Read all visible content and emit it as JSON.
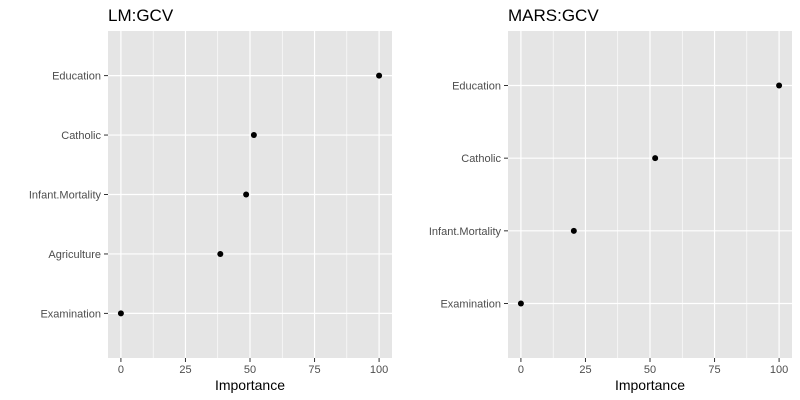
{
  "chart_data": [
    {
      "type": "scatter",
      "title": "LM:GCV",
      "xlabel": "Importance",
      "ylabel": "",
      "xlim": [
        -5,
        105
      ],
      "xticks": [
        0,
        25,
        50,
        75,
        100
      ],
      "grid": true,
      "categories": [
        "Education",
        "Catholic",
        "Infant.Mortality",
        "Agriculture",
        "Examination"
      ],
      "values": [
        100,
        51.5,
        48.5,
        38.5,
        0
      ]
    },
    {
      "type": "scatter",
      "title": "MARS:GCV",
      "xlabel": "Importance",
      "ylabel": "",
      "xlim": [
        -5,
        105
      ],
      "xticks": [
        0,
        25,
        50,
        75,
        100
      ],
      "grid": true,
      "categories": [
        "Education",
        "Catholic",
        "Infant.Mortality",
        "Examination"
      ],
      "values": [
        100,
        52,
        20.5,
        0
      ]
    }
  ],
  "colors": {
    "panel_background": "#e5e5e5",
    "grid": "#ffffff",
    "point": "#000000",
    "tick": "#333333"
  }
}
